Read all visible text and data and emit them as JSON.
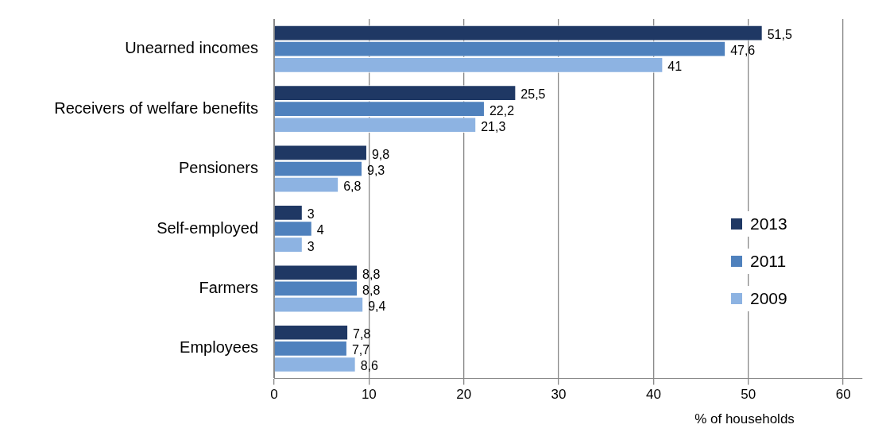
{
  "chart_data": {
    "type": "bar",
    "orientation": "horizontal",
    "xlabel": "% of households",
    "categories": [
      "Unearned incomes",
      "Receivers of welfare benefits",
      "Pensioners",
      "Self-employed",
      "Farmers",
      "Employees"
    ],
    "series": [
      {
        "name": "2013",
        "color": "#1f3864",
        "values": [
          51.5,
          25.5,
          9.8,
          3,
          8.8,
          7.8
        ],
        "value_labels": [
          "51,5",
          "25,5",
          "9,8",
          "3",
          "8,8",
          "7,8"
        ]
      },
      {
        "name": "2011",
        "color": "#4f81bd",
        "values": [
          47.6,
          22.2,
          9.3,
          4,
          8.8,
          7.7
        ],
        "value_labels": [
          "47,6",
          "22,2",
          "9,3",
          "4",
          "8,8",
          "7,7"
        ]
      },
      {
        "name": "2009",
        "color": "#8db3e2",
        "values": [
          41,
          21.3,
          6.8,
          3,
          9.4,
          8.6
        ],
        "value_labels": [
          "41",
          "21,3",
          "6,8",
          "3",
          "9,4",
          "8,6"
        ]
      }
    ],
    "xlim": [
      0,
      62
    ],
    "xticks": [
      0,
      10,
      20,
      30,
      40,
      50,
      60
    ],
    "grid": "x",
    "legend": "right"
  }
}
